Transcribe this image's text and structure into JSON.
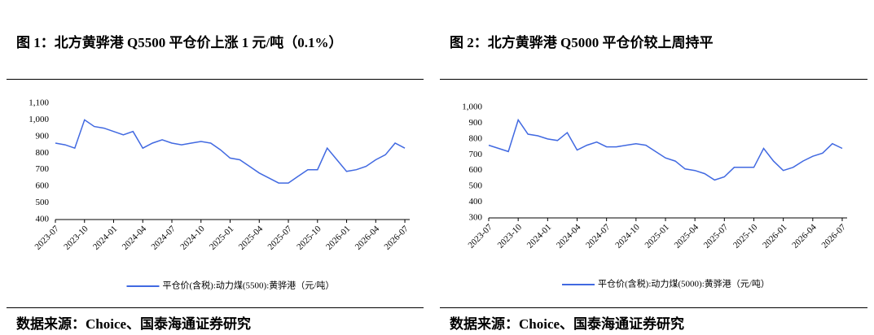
{
  "chart_data": [
    {
      "type": "line",
      "title": "图 1：北方黄骅港 Q5500 平仓价上涨 1 元/吨（0.1%）",
      "source": "数据来源：Choice、国泰海通证券研究",
      "x": [
        "2023-07",
        "2023-08",
        "2023-09",
        "2023-10",
        "2023-11",
        "2023-12",
        "2024-01",
        "2024-02",
        "2024-03",
        "2024-04",
        "2024-05",
        "2024-06",
        "2024-07",
        "2024-08",
        "2024-09",
        "2024-10",
        "2024-11",
        "2024-12",
        "2025-01",
        "2025-02",
        "2025-03",
        "2025-04",
        "2025-05",
        "2025-06",
        "2025-07",
        "2025-08",
        "2025-09",
        "2025-10",
        "2025-11",
        "2025-12",
        "2026-01",
        "2026-02",
        "2026-03",
        "2026-04",
        "2026-05",
        "2026-06",
        "2026-07"
      ],
      "xticks": [
        "2023-07",
        "2023-10",
        "2024-01",
        "2024-04",
        "2024-07",
        "2024-10",
        "2025-01",
        "2025-04",
        "2025-07",
        "2025-10",
        "2026-01",
        "2026-04",
        "2026-07"
      ],
      "series": [
        {
          "name": "平仓价(含税):动力煤(5500):黄骅港（元/吨）",
          "color": "#4169e1",
          "values": [
            860,
            850,
            830,
            1000,
            960,
            950,
            930,
            910,
            930,
            830,
            860,
            880,
            860,
            850,
            860,
            870,
            860,
            820,
            770,
            760,
            720,
            680,
            650,
            620,
            620,
            660,
            700,
            700,
            830,
            760,
            690,
            700,
            720,
            760,
            790,
            860,
            830
          ]
        }
      ],
      "ylim": [
        400,
        1100
      ],
      "yticks": [
        400,
        500,
        600,
        700,
        800,
        900,
        {
          "value": 1000,
          "label": "1,000"
        },
        {
          "value": 1100,
          "label": "1,100"
        }
      ]
    },
    {
      "type": "line",
      "title": "图 2：北方黄骅港 Q5000 平仓价较上周持平",
      "source": "数据来源：Choice、国泰海通证券研究",
      "x": [
        "2023-07",
        "2023-08",
        "2023-09",
        "2023-10",
        "2023-11",
        "2023-12",
        "2024-01",
        "2024-02",
        "2024-03",
        "2024-04",
        "2024-05",
        "2024-06",
        "2024-07",
        "2024-08",
        "2024-09",
        "2024-10",
        "2024-11",
        "2024-12",
        "2025-01",
        "2025-02",
        "2025-03",
        "2025-04",
        "2025-05",
        "2025-06",
        "2025-07",
        "2025-08",
        "2025-09",
        "2025-10",
        "2025-11",
        "2025-12",
        "2026-01",
        "2026-02",
        "2026-03",
        "2026-04",
        "2026-05",
        "2026-06",
        "2026-07"
      ],
      "xticks": [
        "2023-07",
        "2023-10",
        "2024-01",
        "2024-04",
        "2024-07",
        "2024-10",
        "2025-01",
        "2025-04",
        "2025-07",
        "2025-10",
        "2026-01",
        "2026-04",
        "2026-07"
      ],
      "series": [
        {
          "name": "平仓价(含税):动力煤(5000):黄骅港（元/吨）",
          "color": "#4169e1",
          "values": [
            760,
            740,
            720,
            920,
            830,
            820,
            800,
            790,
            840,
            730,
            760,
            780,
            750,
            750,
            760,
            770,
            760,
            720,
            680,
            660,
            610,
            600,
            580,
            540,
            560,
            620,
            620,
            620,
            740,
            660,
            600,
            620,
            660,
            690,
            710,
            770,
            740
          ]
        }
      ],
      "ylim": [
        300,
        1000
      ],
      "yticks": [
        300,
        400,
        500,
        600,
        700,
        800,
        900,
        {
          "value": 1000,
          "label": "1,000"
        }
      ]
    }
  ]
}
